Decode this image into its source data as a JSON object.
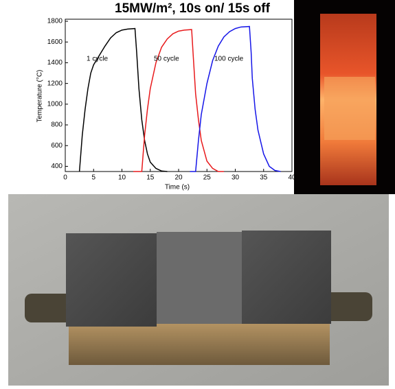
{
  "chart_data": {
    "type": "line",
    "title": "15MW/m², 10s on/ 15s off",
    "x_label": "Time (s)",
    "y_label": "Temperature (°C)",
    "xlim": [
      0,
      40
    ],
    "ylim": [
      350,
      1820
    ],
    "xticks": [
      0,
      5,
      10,
      15,
      20,
      25,
      30,
      35,
      40
    ],
    "yticks": [
      400,
      600,
      800,
      1000,
      1200,
      1400,
      1600,
      1800
    ],
    "series": [
      {
        "name": "1 cycle",
        "color": "#000000",
        "x": [
          2.5,
          3,
          3.5,
          4,
          4.5,
          5,
          6,
          7,
          8,
          9,
          10,
          11,
          12.3,
          12.6,
          13,
          13.5,
          14,
          14.5,
          15,
          16,
          17,
          18
        ],
        "values": [
          350,
          700,
          950,
          1150,
          1300,
          1380,
          1470,
          1560,
          1640,
          1690,
          1715,
          1725,
          1730,
          1500,
          1150,
          850,
          650,
          520,
          440,
          380,
          355,
          350
        ]
      },
      {
        "name": "50 cycle",
        "color": "#e8191b",
        "x": [
          12,
          13.5,
          14,
          14.5,
          15,
          16,
          17,
          18,
          19,
          20,
          21,
          22.3,
          22.6,
          23,
          23.5,
          24,
          25,
          26,
          27,
          28
        ],
        "values": [
          350,
          350,
          700,
          950,
          1150,
          1400,
          1550,
          1630,
          1680,
          1705,
          1715,
          1720,
          1450,
          1100,
          850,
          650,
          450,
          380,
          350,
          350
        ]
      },
      {
        "name": "100 cycle",
        "color": "#1515e8",
        "x": [
          22,
          23,
          23.5,
          24,
          25,
          26,
          27,
          28,
          29,
          30,
          31,
          32.5,
          32.8,
          33,
          33.5,
          34,
          35,
          36,
          37,
          38
        ],
        "values": [
          350,
          350,
          650,
          900,
          1200,
          1420,
          1560,
          1650,
          1700,
          1730,
          1745,
          1750,
          1500,
          1250,
          950,
          750,
          520,
          400,
          360,
          350
        ]
      }
    ]
  }
}
